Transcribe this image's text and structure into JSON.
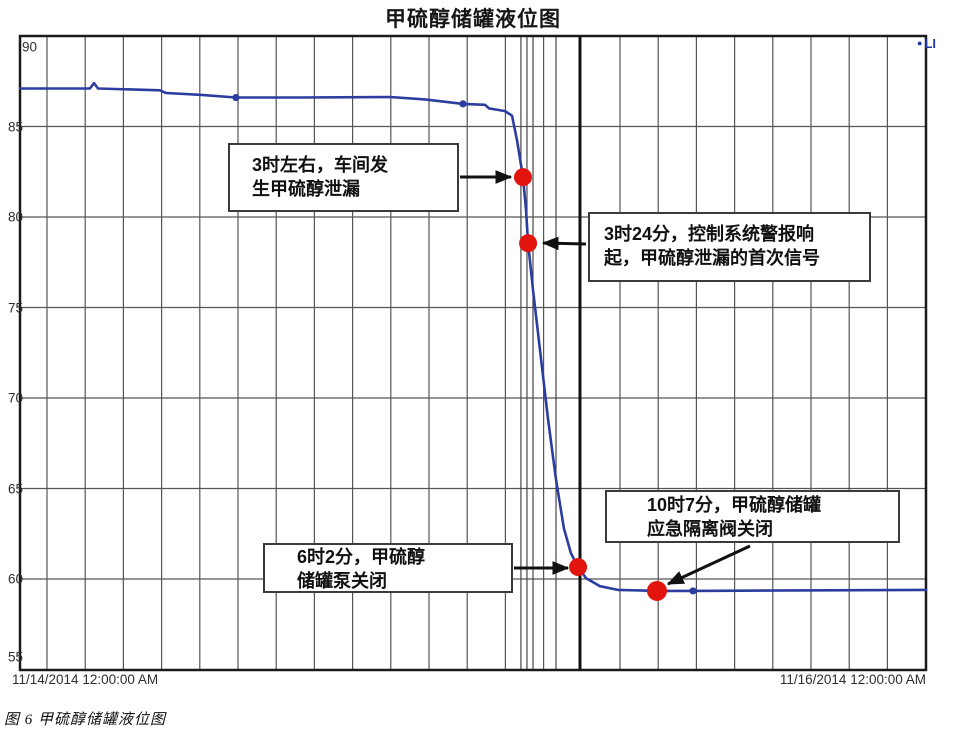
{
  "page": {
    "title": "甲硫醇储罐液位图",
    "caption": "图 6  甲硫醇储罐液位图"
  },
  "legend": {
    "marker": "●",
    "label": "LI",
    "color": "#2038a8"
  },
  "colors": {
    "line": "#2c3da0",
    "marker_dot": "#2c3da0",
    "event_dot": "#e2140e",
    "grid": "#555555",
    "border": "#1a1a1a",
    "cursor_thin": "#474747",
    "cursor_thick": "#111111",
    "arrow": "#111111"
  },
  "chart_data": {
    "type": "line",
    "title": "甲硫醇储罐液位图",
    "xlabel": "",
    "ylabel": "",
    "x_axis": {
      "unit": "hours since 11/14/2014 00:00",
      "start_label": "11/14/2014 12:00:00 AM",
      "end_label": "11/16/2014 12:00:00 AM",
      "label_times": [
        0,
        48
      ]
    },
    "y_axis": {
      "range": [
        55,
        90
      ],
      "ticks": [
        90,
        85,
        80,
        75,
        70,
        65,
        60,
        55
      ]
    },
    "grid": "on",
    "legend_position": "top-right",
    "series": [
      {
        "name": "LI",
        "points": [
          [
            -4.09,
            87.1
          ],
          [
            0.31,
            87.1
          ],
          [
            0.57,
            87.4
          ],
          [
            0.82,
            87.1
          ],
          [
            4.72,
            87.0
          ],
          [
            5.1,
            86.85
          ],
          [
            7.24,
            86.75
          ],
          [
            9.51,
            86.6
          ],
          [
            13.54,
            86.6
          ],
          [
            19.21,
            86.63
          ],
          [
            21.42,
            86.5
          ],
          [
            22.36,
            86.4
          ],
          [
            23.81,
            86.25
          ],
          [
            25.2,
            86.2
          ],
          [
            25.45,
            86.0
          ],
          [
            26.46,
            85.85
          ],
          [
            26.9,
            85.6
          ],
          [
            27.21,
            84.25
          ],
          [
            27.59,
            82.2
          ],
          [
            27.78,
            80.4
          ],
          [
            27.91,
            78.55
          ],
          [
            28.22,
            75.97
          ],
          [
            28.66,
            72.65
          ],
          [
            29.17,
            68.8
          ],
          [
            29.67,
            65.5
          ],
          [
            30.17,
            62.8
          ],
          [
            30.61,
            61.43
          ],
          [
            31.06,
            60.66
          ],
          [
            31.56,
            60.05
          ],
          [
            32.44,
            59.6
          ],
          [
            33.57,
            59.4
          ],
          [
            36.03,
            59.34
          ],
          [
            38.3,
            59.34
          ],
          [
            52.98,
            59.4
          ]
        ],
        "markers": [
          [
            9.51,
            86.6
          ],
          [
            23.81,
            86.25
          ],
          [
            38.3,
            59.34
          ]
        ]
      }
    ],
    "events": [
      {
        "t": 27.59,
        "level": 82.2,
        "label_lines": [
          "3时左右，车间发",
          "生甲硫醇泄漏"
        ]
      },
      {
        "t": 27.91,
        "level": 78.55,
        "label_lines": [
          "3时24分，控制系统警报响",
          "起，甲硫醇泄漏的首次信号"
        ]
      },
      {
        "t": 31.06,
        "level": 60.66,
        "label_lines": [
          "6时2分，甲硫醇",
          "储罐泵关闭"
        ]
      },
      {
        "t": 36.03,
        "level": 59.34,
        "label_lines": [
          "10时7分，甲硫醇储罐",
          "应急隔离阀关闭"
        ]
      }
    ],
    "cursor_lines": {
      "thin_t": [
        27.46,
        27.84,
        28.22,
        29.67
      ],
      "thick_t": 31.18
    }
  }
}
